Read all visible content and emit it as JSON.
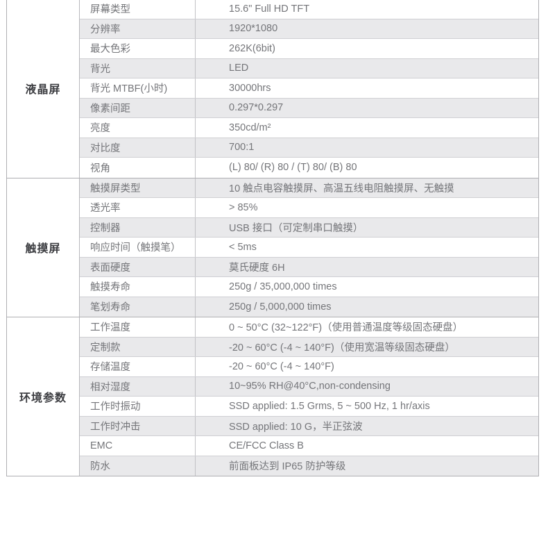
{
  "colors": {
    "row_alt_bg": "#e9e9eb",
    "border_outer": "#aeaeb2",
    "border_row_divider": "#cfcfd3",
    "border_column_divider": "#c2c2c6",
    "text_category": "#3c3d41",
    "text_body": "#747579"
  },
  "table": {
    "sections": [
      {
        "category": "液晶屏",
        "rows": [
          {
            "param": "屏幕类型",
            "value": "15.6\" Full HD TFT"
          },
          {
            "param": "分辨率",
            "value": "1920*1080"
          },
          {
            "param": "最大色彩",
            "value": "262K(6bit)"
          },
          {
            "param": "背光",
            "value": "LED"
          },
          {
            "param": "背光 MTBF(小时)",
            "value": "30000hrs"
          },
          {
            "param": "像素间距",
            "value": "0.297*0.297"
          },
          {
            "param": "亮度",
            "value": "350cd/m²"
          },
          {
            "param": "对比度",
            "value": "700:1"
          },
          {
            "param": "视角",
            "value": "(L) 80/ (R) 80 / (T) 80/ (B) 80"
          }
        ]
      },
      {
        "category": "触摸屏",
        "rows": [
          {
            "param": "触摸屏类型",
            "value": "10 触点电容触摸屏、高温五线电阻触摸屏、无触摸"
          },
          {
            "param": "透光率",
            "value": "> 85%"
          },
          {
            "param": "控制器",
            "value": "USB 接口（可定制串口触摸）"
          },
          {
            "param": "响应时间（触摸笔）",
            "value": "< 5ms"
          },
          {
            "param": "表面硬度",
            "value": "莫氏硬度 6H"
          },
          {
            "param": "触摸寿命",
            "value": "250g / 35,000,000 times"
          },
          {
            "param": "笔划寿命",
            "value": "250g / 5,000,000 times"
          }
        ]
      },
      {
        "category": "环境参数",
        "rows": [
          {
            "param": "工作温度",
            "value": "0 ~ 50°C (32~122°F)（使用普通温度等级固态硬盘）"
          },
          {
            "param": "定制款",
            "value": "-20 ~ 60°C (-4 ~ 140°F)（使用宽温等级固态硬盘）"
          },
          {
            "param": "存储温度",
            "value": "-20 ~ 60°C (-4 ~ 140°F)"
          },
          {
            "param": "相对湿度",
            "value": "10~95% RH@40°C,non-condensing"
          },
          {
            "param": "工作时振动",
            "value": "SSD applied: 1.5 Grms, 5 ~ 500 Hz, 1 hr/axis"
          },
          {
            "param": "工作时冲击",
            "value": "SSD applied: 10 G，半正弦波"
          },
          {
            "param": "EMC",
            "value": "CE/FCC Class B"
          },
          {
            "param": "防水",
            "value": "前面板达到 IP65 防护等级"
          }
        ]
      }
    ]
  }
}
